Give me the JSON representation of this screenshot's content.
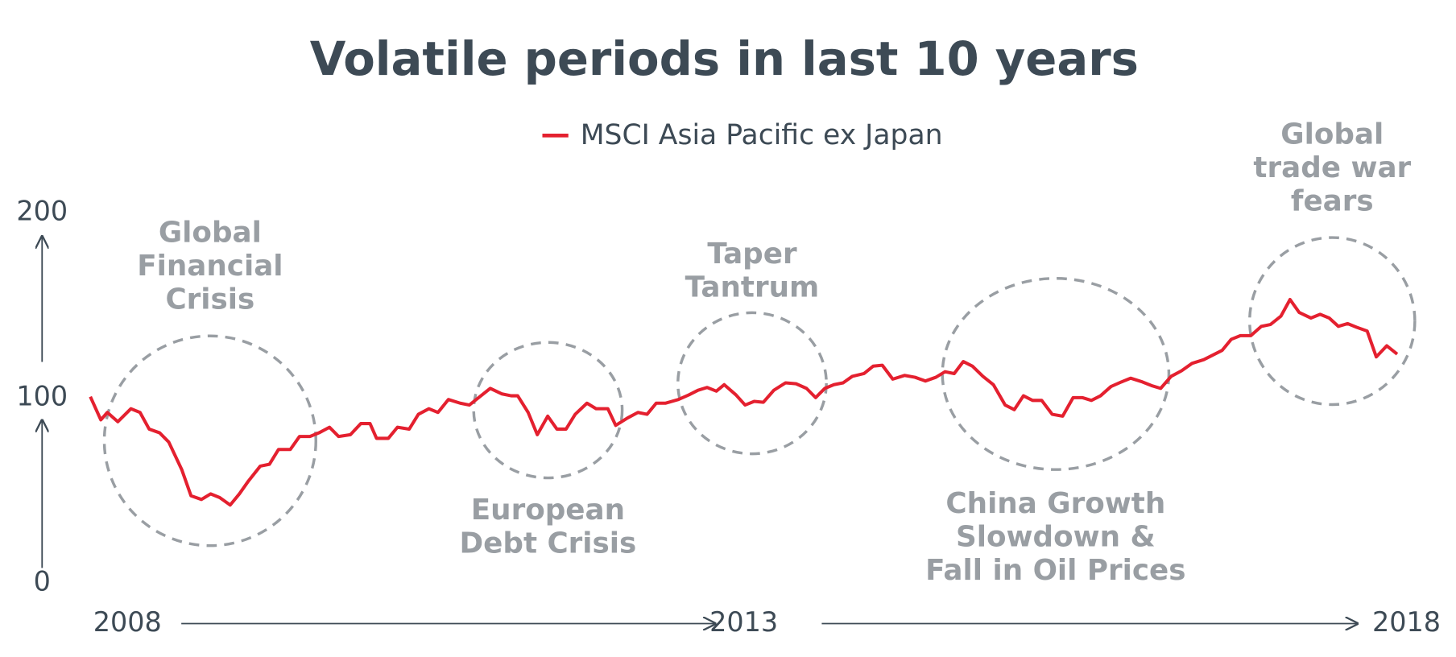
{
  "chart_data": {
    "type": "line",
    "title": "Volatile periods in last 10 years",
    "x": [
      2008.0,
      2008.08,
      2008.13,
      2008.21,
      2008.31,
      2008.38,
      2008.45,
      2008.53,
      2008.6,
      2008.7,
      2008.77,
      2008.85,
      2008.92,
      2008.99,
      2009.07,
      2009.14,
      2009.21,
      2009.3,
      2009.37,
      2009.44,
      2009.53,
      2009.6,
      2009.68,
      2009.75,
      2009.83,
      2009.9,
      2009.99,
      2010.07,
      2010.14,
      2010.19,
      2010.28,
      2010.35,
      2010.44,
      2010.51,
      2010.59,
      2010.66,
      2010.74,
      2010.83,
      2010.9,
      2010.98,
      2011.06,
      2011.15,
      2011.22,
      2011.27,
      2011.35,
      2011.42,
      2011.5,
      2011.57,
      2011.64,
      2011.71,
      2011.8,
      2011.87,
      2011.96,
      2012.02,
      2012.11,
      2012.19,
      2012.26,
      2012.33,
      2012.4,
      2012.5,
      2012.58,
      2012.65,
      2012.72,
      2012.79,
      2012.85,
      2012.94,
      2013.01,
      2013.08,
      2013.15,
      2013.23,
      2013.32,
      2013.4,
      2013.48,
      2013.55,
      2013.62,
      2013.69,
      2013.76,
      2013.83,
      2013.92,
      2013.99,
      2014.06,
      2014.14,
      2014.23,
      2014.31,
      2014.39,
      2014.47,
      2014.54,
      2014.61,
      2014.68,
      2014.75,
      2014.83,
      2014.91,
      2015.0,
      2015.07,
      2015.14,
      2015.21,
      2015.28,
      2015.36,
      2015.44,
      2015.52,
      2015.59,
      2015.66,
      2015.73,
      2015.81,
      2015.89,
      2015.96,
      2016.05,
      2016.12,
      2016.19,
      2016.27,
      2016.35,
      2016.43,
      2016.52,
      2016.59,
      2016.66,
      2016.73,
      2016.8,
      2016.88,
      2016.96,
      2017.03,
      2017.11,
      2017.18,
      2017.25,
      2017.34,
      2017.41,
      2017.48,
      2017.55,
      2017.62,
      2017.69,
      2017.77,
      2017.84,
      2017.92,
      2018.0
    ],
    "series": [
      {
        "name": "MSCI Asia Pacific ex Japan",
        "color": "#e4202f",
        "values": [
          100.5,
          88,
          92,
          87,
          94,
          92,
          83,
          81,
          76,
          61,
          47,
          45,
          48,
          46,
          42,
          48,
          55,
          63,
          64,
          72,
          72,
          79,
          79,
          81,
          84,
          79,
          80,
          86,
          86,
          78,
          78,
          84,
          83,
          91,
          94,
          92,
          99,
          97,
          96,
          100.5,
          105,
          102,
          101,
          101,
          92,
          80,
          90,
          83,
          83,
          91,
          97,
          94,
          94,
          85,
          89,
          92,
          91,
          97,
          97,
          99,
          101.5,
          104,
          105.5,
          103.5,
          107,
          101.5,
          96,
          98,
          97.5,
          104,
          108,
          107.5,
          105,
          100,
          105,
          107,
          108,
          111.5,
          113,
          117,
          117.5,
          110,
          112,
          111,
          109,
          111,
          114,
          113,
          119.5,
          117,
          111.5,
          107,
          96,
          93.5,
          101,
          98.5,
          98.5,
          91,
          90,
          100,
          100,
          98.5,
          101,
          106,
          108.5,
          110.5,
          108.5,
          106.5,
          105,
          111.5,
          114.5,
          118.5,
          120.5,
          123,
          125.5,
          131.5,
          133.5,
          133.5,
          138.5,
          139.5,
          144,
          153,
          146,
          143,
          145,
          143,
          138.5,
          140,
          138,
          136,
          122,
          128,
          123.5
        ]
      }
    ],
    "xlim": [
      2008,
      2018
    ],
    "xticks": [
      2008,
      2013,
      2018
    ],
    "ylim": [
      0,
      200
    ],
    "yticks": [
      0,
      100,
      200
    ],
    "annotations": [
      {
        "lines": [
          "Global",
          "Financial",
          "Crisis"
        ]
      },
      {
        "lines": [
          "European",
          "Debt Crisis"
        ]
      },
      {
        "lines": [
          "Taper",
          "Tantrum"
        ]
      },
      {
        "lines": [
          "China Growth",
          "Slowdown &",
          "Fall in Oil Prices"
        ]
      },
      {
        "lines": [
          "Global",
          "trade war",
          "fears"
        ]
      }
    ]
  }
}
